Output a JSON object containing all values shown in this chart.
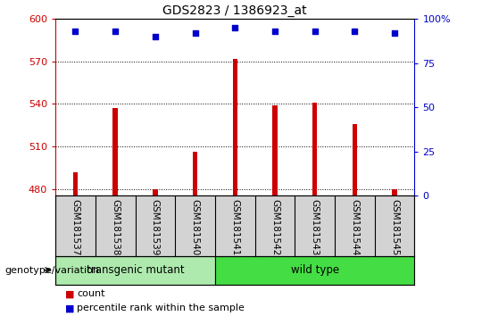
{
  "title": "GDS2823 / 1386923_at",
  "samples": [
    "GSM181537",
    "GSM181538",
    "GSM181539",
    "GSM181540",
    "GSM181541",
    "GSM181542",
    "GSM181543",
    "GSM181544",
    "GSM181545"
  ],
  "counts": [
    492,
    537,
    480,
    506,
    572,
    539,
    541,
    526,
    480
  ],
  "percentile_ranks": [
    93,
    93,
    90,
    92,
    95,
    93,
    93,
    93,
    92
  ],
  "ylim_left": [
    475,
    600
  ],
  "ylim_right": [
    0,
    100
  ],
  "yticks_left": [
    480,
    510,
    540,
    570,
    600
  ],
  "yticks_right": [
    0,
    25,
    50,
    75,
    100
  ],
  "groups": [
    {
      "label": "transgenic mutant",
      "start": 0,
      "end": 4
    },
    {
      "label": "wild type",
      "start": 4,
      "end": 9
    }
  ],
  "group_colors": [
    "#aeeaae",
    "#44dd44"
  ],
  "bar_color": "#cc0000",
  "dot_color": "#0000cc",
  "bar_width": 0.12,
  "dot_size": 25,
  "legend_items": [
    {
      "label": "count",
      "color": "#cc0000"
    },
    {
      "label": "percentile rank within the sample",
      "color": "#0000cc"
    }
  ],
  "genotype_label": "genotype/variation"
}
